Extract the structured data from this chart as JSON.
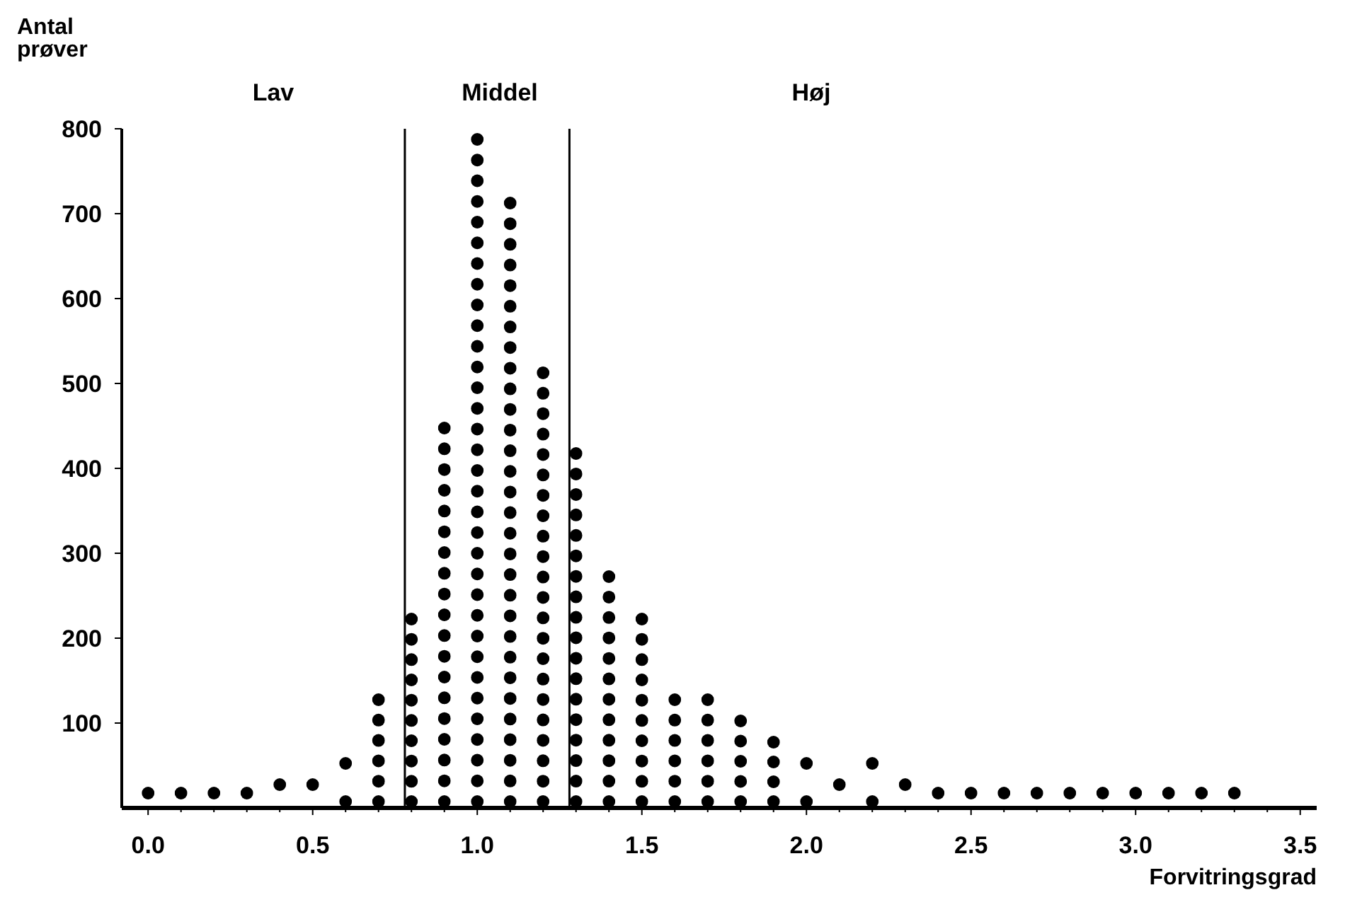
{
  "chart_data": {
    "type": "bar",
    "xlabel": "Forvitringsgrad",
    "ylabel": "Antal\nprøver",
    "x": [
      0.0,
      0.1,
      0.2,
      0.3,
      0.4,
      0.5,
      0.6,
      0.7,
      0.8,
      0.9,
      1.0,
      1.1,
      1.2,
      1.3,
      1.4,
      1.5,
      1.6,
      1.7,
      1.8,
      1.9,
      2.0,
      2.1,
      2.2,
      2.3,
      2.4,
      2.5,
      2.6,
      2.7,
      2.8,
      2.9,
      3.0,
      3.1,
      3.2,
      3.3
    ],
    "values": [
      25,
      25,
      25,
      25,
      35,
      35,
      60,
      135,
      230,
      455,
      795,
      720,
      520,
      425,
      280,
      230,
      135,
      135,
      110,
      85,
      60,
      35,
      60,
      35,
      25,
      25,
      25,
      25,
      25,
      25,
      25,
      25,
      25,
      25
    ],
    "color": "#000000",
    "xlim": [
      -0.08,
      3.55
    ],
    "ylim": [
      0,
      800
    ],
    "xticks": [
      {
        "value": 0,
        "label": "0.0"
      },
      {
        "value": 0.1,
        "label": null
      },
      {
        "value": 0.2,
        "label": null
      },
      {
        "value": 0.3,
        "label": null
      },
      {
        "value": 0.4,
        "label": null
      },
      {
        "value": 0.5,
        "label": "0.5"
      },
      {
        "value": 0.6,
        "label": null
      },
      {
        "value": 0.7,
        "label": null
      },
      {
        "value": 0.8,
        "label": null
      },
      {
        "value": 0.9,
        "label": null
      },
      {
        "value": 1,
        "label": "1.0"
      },
      {
        "value": 1.1,
        "label": null
      },
      {
        "value": 1.2,
        "label": null
      },
      {
        "value": 1.3,
        "label": null
      },
      {
        "value": 1.4,
        "label": null
      },
      {
        "value": 1.5,
        "label": "1.5"
      },
      {
        "value": 1.6,
        "label": null
      },
      {
        "value": 1.7,
        "label": null
      },
      {
        "value": 1.8,
        "label": null
      },
      {
        "value": 1.9,
        "label": null
      },
      {
        "value": 2,
        "label": "2.0"
      },
      {
        "value": 2.1,
        "label": null
      },
      {
        "value": 2.2,
        "label": null
      },
      {
        "value": 2.3,
        "label": null
      },
      {
        "value": 2.4,
        "label": null
      },
      {
        "value": 2.5,
        "label": "2.5"
      },
      {
        "value": 2.6,
        "label": null
      },
      {
        "value": 2.7,
        "label": null
      },
      {
        "value": 2.8,
        "label": null
      },
      {
        "value": 2.9,
        "label": null
      },
      {
        "value": 3,
        "label": "3.0"
      },
      {
        "value": 3.1,
        "label": null
      },
      {
        "value": 3.2,
        "label": null
      },
      {
        "value": 3.3,
        "label": null
      },
      {
        "value": 3.4,
        "label": null
      },
      {
        "value": 3.5,
        "label": "3.5"
      }
    ],
    "yticks": [
      100,
      200,
      300,
      400,
      500,
      600,
      700,
      800
    ],
    "grid": false,
    "ref_lines": [
      {
        "axis": "x",
        "value": 0.78,
        "color": "#000000"
      },
      {
        "axis": "x",
        "value": 1.28,
        "color": "#000000"
      }
    ],
    "annotations": [
      "Lav",
      "Middel",
      "Høj"
    ]
  }
}
